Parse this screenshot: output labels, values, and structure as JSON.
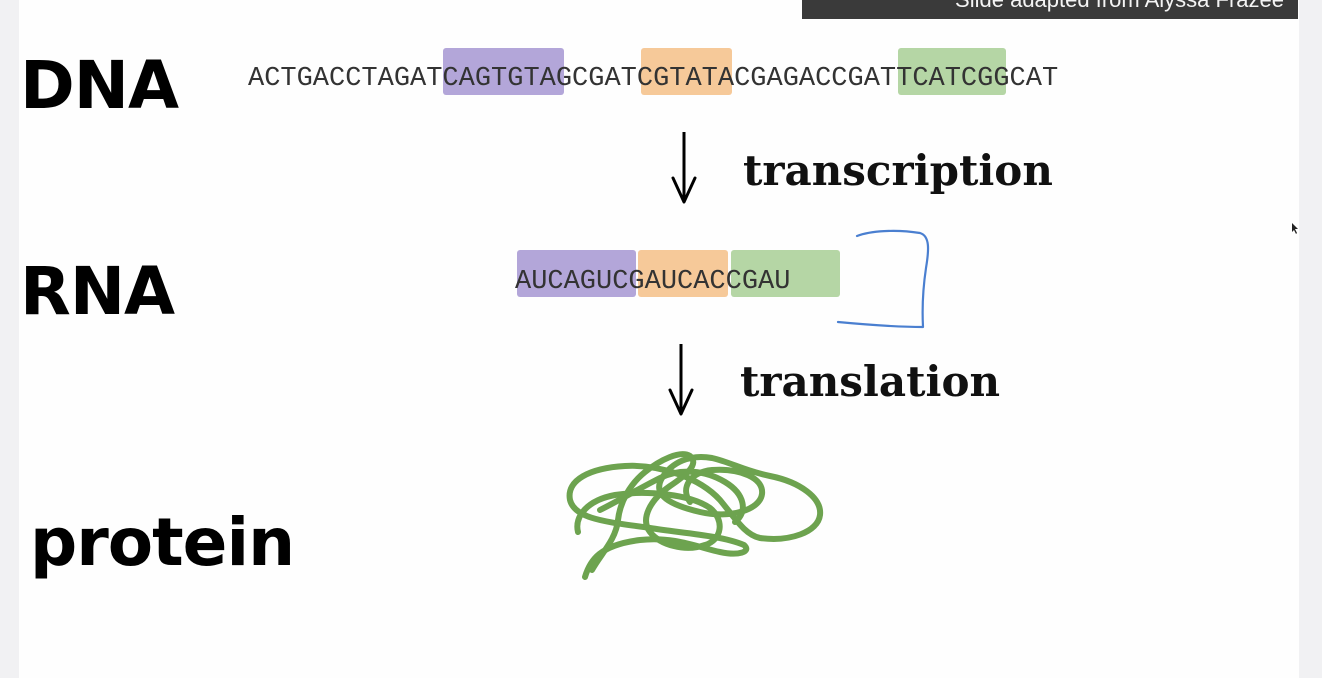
{
  "credit": "Slide adapted from Alyssa Frazee",
  "labels": {
    "dna": "DNA",
    "rna": "RNA",
    "protein": "protein"
  },
  "dna_sequence": {
    "segments": [
      "ACTGACCTAG",
      "ATCAGTG",
      "TAGC",
      "GATC",
      "GTATACGAG",
      "ACCGAT",
      "TCATCGGCAT"
    ]
  },
  "rna_sequence": {
    "segments": [
      "AUCAGU",
      "CGAUC",
      "ACCGAU"
    ]
  },
  "processes": {
    "transcription": "transcription",
    "translation": "translation"
  },
  "colors": {
    "purple": "#b3a6d9",
    "orange": "#f6c999",
    "green": "#b5d6a5",
    "pen_blue": "#4a7fd0",
    "protein_green": "#6da34f"
  },
  "icons": [
    "down-arrow-icon",
    "down-arrow-icon",
    "annotation-bracket",
    "protein-squiggle",
    "cursor-icon"
  ]
}
